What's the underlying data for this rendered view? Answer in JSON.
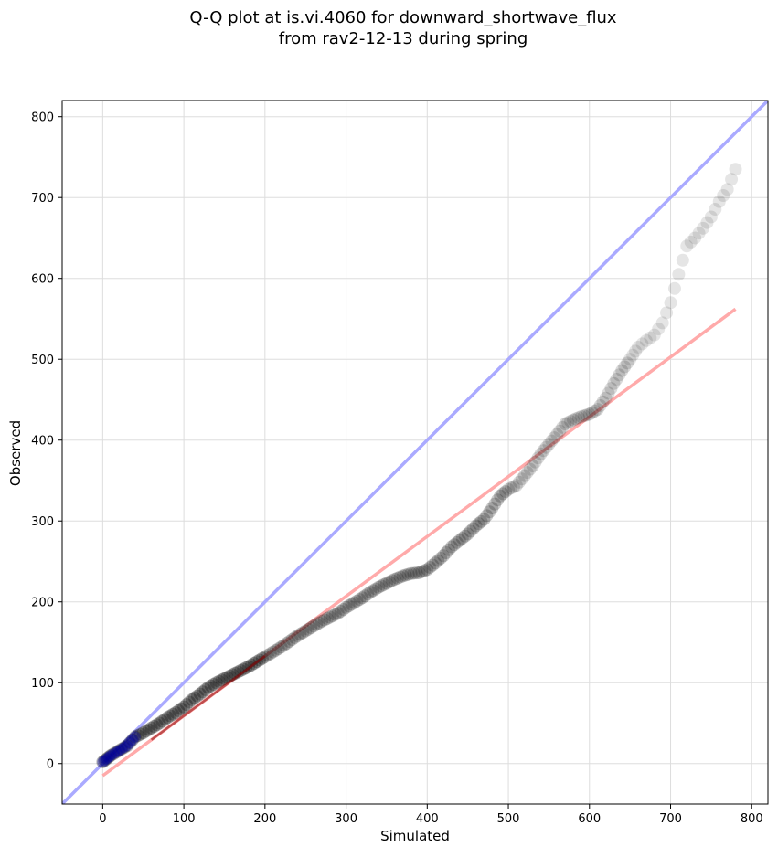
{
  "chart_data": {
    "type": "scatter",
    "title_line1": "Q-Q plot at is.vi.4060 for downward_shortwave_flux",
    "title_line2": "from rav2-12-13 during spring",
    "xlabel": "Simulated",
    "ylabel": "Observed",
    "xlim": [
      -50,
      820
    ],
    "ylim": [
      -50,
      820
    ],
    "xticks": [
      0,
      100,
      200,
      300,
      400,
      500,
      600,
      700,
      800
    ],
    "yticks": [
      0,
      100,
      200,
      300,
      400,
      500,
      600,
      700,
      800
    ],
    "grid": true,
    "reference_line": {
      "from": [
        -50,
        -50
      ],
      "to": [
        820,
        820
      ],
      "color": "#aaaaff"
    },
    "fit_line": {
      "from": [
        0,
        -15
      ],
      "to": [
        780,
        562
      ],
      "color": "#ffaaaa"
    },
    "colors": {
      "points": "#000000",
      "low_points": "#0000aa",
      "fit_segment": "#8b0000"
    },
    "quantiles": {
      "x": [
        0,
        5,
        10,
        20,
        30,
        40,
        50,
        60,
        70,
        80,
        90,
        100,
        110,
        120,
        130,
        140,
        150,
        160,
        170,
        180,
        190,
        200,
        210,
        220,
        230,
        240,
        250,
        260,
        270,
        280,
        290,
        300,
        310,
        320,
        330,
        340,
        350,
        360,
        370,
        380,
        390,
        400,
        410,
        420,
        430,
        440,
        450,
        460,
        470,
        480,
        490,
        500,
        510,
        520,
        530,
        540,
        550,
        560,
        570,
        580,
        590,
        600,
        610,
        620,
        630,
        640,
        650,
        660,
        670,
        680,
        690,
        700,
        710,
        720,
        730,
        740,
        750,
        760,
        770,
        780
      ],
      "y": [
        2,
        6,
        10,
        16,
        22,
        33,
        38,
        44,
        50,
        57,
        63,
        70,
        79,
        86,
        94,
        100,
        105,
        110,
        115,
        120,
        126,
        132,
        138,
        144,
        151,
        158,
        164,
        170,
        176,
        181,
        186,
        193,
        199,
        205,
        212,
        218,
        223,
        228,
        232,
        235,
        236,
        240,
        248,
        257,
        268,
        276,
        284,
        294,
        302,
        316,
        331,
        339,
        344,
        356,
        368,
        383,
        395,
        407,
        420,
        425,
        429,
        432,
        438,
        452,
        470,
        486,
        500,
        515,
        523,
        530,
        545,
        570,
        605,
        640,
        650,
        662,
        676,
        695,
        710,
        735
      ]
    }
  }
}
